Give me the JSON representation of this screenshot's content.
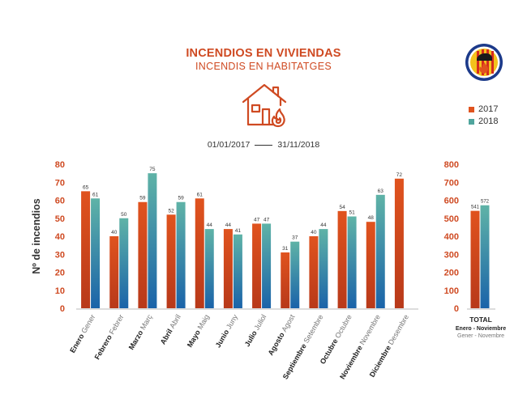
{
  "header": {
    "title": "INCENDIOS EN VIVIENDAS",
    "subtitle": "INCENDIS EN HABITATGES",
    "date_start": "01/01/2017",
    "date_end": "31/11/2018"
  },
  "colors": {
    "series_2017_top": "#e0531e",
    "series_2017_bottom": "#b8391a",
    "series_2018_top": "#5fb3a7",
    "series_2018_bottom": "#1a63a9",
    "axis_label": "#cf4a22",
    "brand": "#cf4a22"
  },
  "icons": [
    "house-fire-icon",
    "fire-brigade-logo"
  ],
  "chart_data": [
    {
      "type": "bar",
      "ylabel": "Nº de incendios",
      "ylim": [
        0,
        80
      ],
      "yticks": [
        0,
        10,
        20,
        30,
        40,
        50,
        60,
        70,
        80
      ],
      "categories": [
        "Enero",
        "Febrero",
        "Marzo",
        "Abril",
        "Mayo",
        "Junio",
        "Julio",
        "Agosto",
        "Septiembre",
        "Octubre",
        "Noviembre",
        "Diciembre"
      ],
      "categories_secondary": [
        "Gener",
        "Febrer",
        "Març",
        "Abril",
        "Maig",
        "Juny",
        "Juliol",
        "Agost",
        "Setembre",
        "Octubre",
        "Novembre",
        "Desembre"
      ],
      "series": [
        {
          "name": "2017",
          "values": [
            65,
            40,
            59,
            52,
            61,
            44,
            47,
            31,
            40,
            54,
            48,
            72
          ]
        },
        {
          "name": "2018",
          "values": [
            61,
            50,
            75,
            59,
            44,
            41,
            47,
            37,
            44,
            51,
            63,
            null
          ]
        }
      ],
      "legend": "right"
    },
    {
      "type": "bar",
      "ylim": [
        0,
        800
      ],
      "yticks": [
        0,
        100,
        200,
        300,
        400,
        500,
        600,
        700,
        800
      ],
      "categories": [
        "TOTAL"
      ],
      "category_sub1": "Enero - Noviembre",
      "category_sub2": "Gener - Novembre",
      "series": [
        {
          "name": "2017",
          "values": [
            541
          ]
        },
        {
          "name": "2018",
          "values": [
            572
          ]
        }
      ]
    }
  ]
}
